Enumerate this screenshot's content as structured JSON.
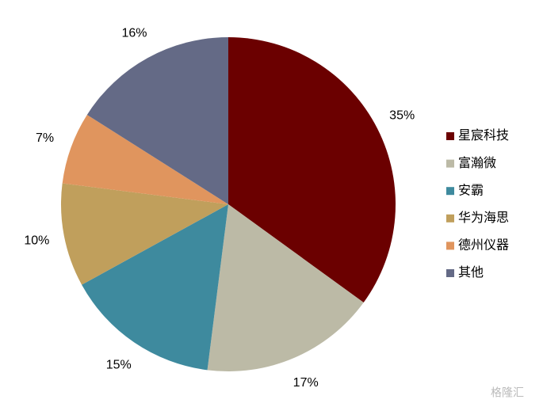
{
  "chart_data": {
    "type": "pie",
    "categories": [
      "星宸科技",
      "富瀚微",
      "安霸",
      "华为海思",
      "德州仪器",
      "其他"
    ],
    "values": [
      35,
      17,
      15,
      10,
      7,
      16
    ],
    "value_labels": [
      "35%",
      "17%",
      "15%",
      "10%",
      "7%",
      "16%"
    ],
    "colors": [
      "#6b0000",
      "#bcbaa6",
      "#3e8a9e",
      "#c09f5c",
      "#e0955e",
      "#646a86"
    ],
    "legend": "right",
    "watermark": "格隆汇"
  }
}
